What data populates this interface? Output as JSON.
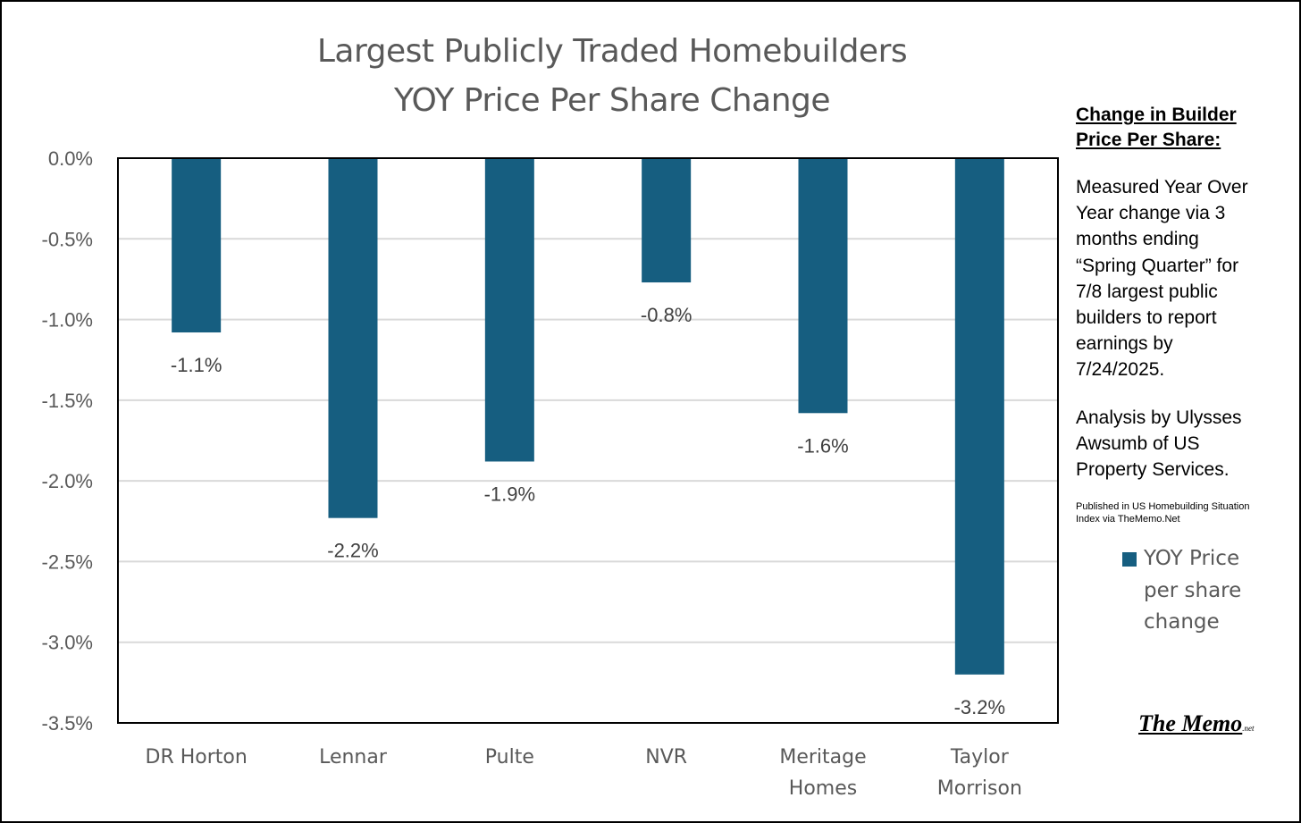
{
  "chart_data": {
    "type": "bar",
    "title": [
      "Largest Publicly Traded Homebuilders",
      "YOY Price Per Share Change"
    ],
    "categories": [
      "DR Horton",
      "Lennar",
      "Pulte",
      "NVR",
      "Meritage Homes",
      "Taylor Morrison"
    ],
    "category_lines": [
      [
        "DR Horton"
      ],
      [
        "Lennar"
      ],
      [
        "Pulte"
      ],
      [
        "NVR"
      ],
      [
        "Meritage",
        "Homes"
      ],
      [
        "Taylor",
        "Morrison"
      ]
    ],
    "series": [
      {
        "name": "YOY Price per share change",
        "values": [
          -1.08,
          -2.23,
          -1.88,
          -0.77,
          -1.58,
          -3.2
        ],
        "labels": [
          "-1.1%",
          "-2.2%",
          "-1.9%",
          "-0.8%",
          "-1.6%",
          "-3.2%"
        ],
        "color": "#165e80"
      }
    ],
    "ylim": [
      -3.5,
      0
    ],
    "yticks": [
      0,
      -0.5,
      -1.0,
      -1.5,
      -2.0,
      -2.5,
      -3.0,
      -3.5
    ],
    "ytick_labels": [
      "0.0%",
      "-0.5%",
      "-1.0%",
      "-1.5%",
      "-2.0%",
      "-2.5%",
      "-3.0%",
      "-3.5%"
    ],
    "xlabel": "",
    "ylabel": "",
    "grid": true,
    "legend": "right"
  },
  "legend": {
    "label_lines": [
      "YOY Price",
      "per share",
      "change"
    ]
  },
  "sidebar": {
    "heading_lines": [
      "Change in Builder",
      "Price Per Share:"
    ],
    "method_lines": [
      "Measured Year Over",
      "Year change via 3",
      "months ending",
      "“Spring Quarter” for",
      "7/8 largest public",
      "builders to report",
      "earnings by",
      "7/24/2025."
    ],
    "analysis_lines": [
      "Analysis by Ulysses",
      "Awsumb of US",
      "Property Services."
    ],
    "published_lines": [
      "Published in US Homebuilding Situation",
      "Index via TheMemo.Net"
    ]
  },
  "brand": {
    "main": "The Memo",
    "suffix": ".net"
  },
  "colors": {
    "bar": "#165e80",
    "grid": "#d9d9d9",
    "axis_text": "#595959",
    "plot_border": "#000000"
  }
}
